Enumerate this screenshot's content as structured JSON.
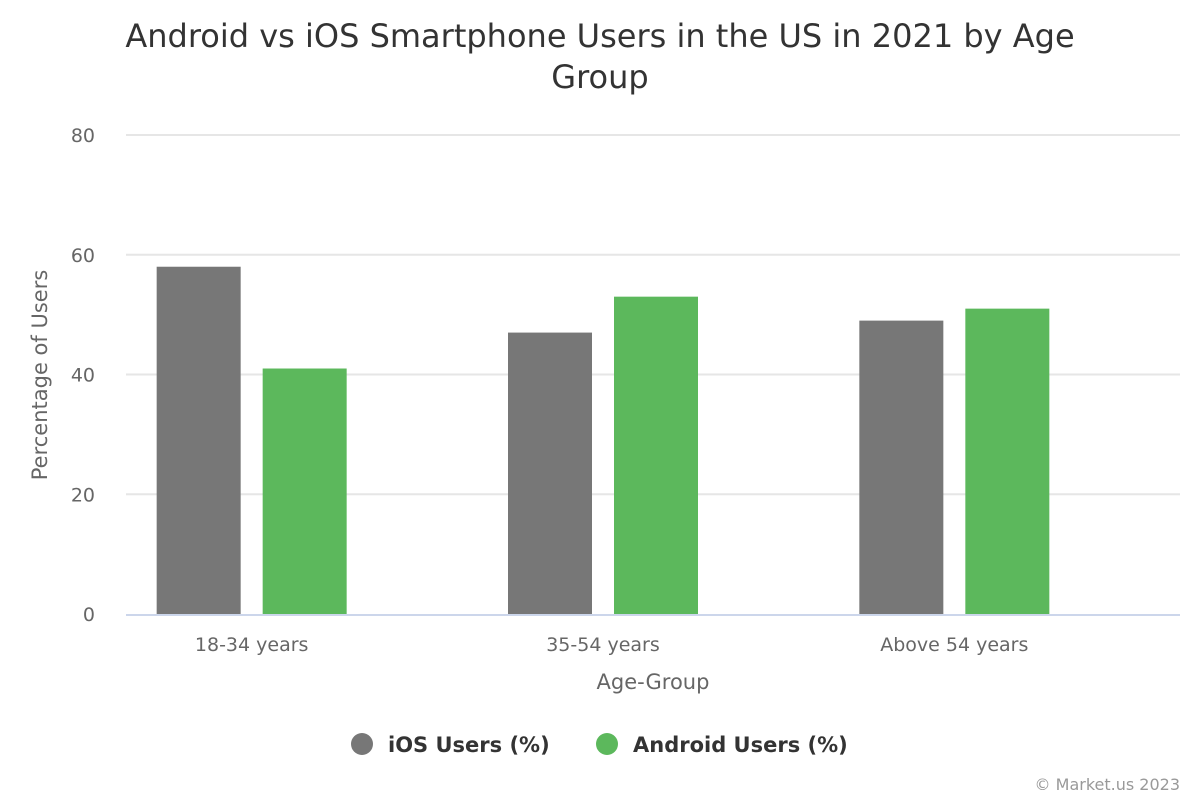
{
  "chart_data": {
    "type": "bar",
    "title": "Android vs iOS Smartphone Users in the US in 2021 by Age Group",
    "title_lines": [
      "Android vs iOS Smartphone Users in the US in 2021 by Age",
      "Group"
    ],
    "xlabel": "Age-Group",
    "ylabel": "Percentage of Users",
    "categories": [
      "18-34 years",
      "35-54 years",
      "Above 54 years"
    ],
    "series": [
      {
        "name": "iOS Users (%)",
        "color": "#777777",
        "values": [
          58,
          47,
          49
        ]
      },
      {
        "name": "Android Users (%)",
        "color": "#5cb85c",
        "values": [
          41,
          53,
          51
        ]
      }
    ],
    "ylim": [
      0,
      80
    ],
    "yticks": [
      0,
      20,
      40,
      60,
      80
    ],
    "grid": true,
    "legend_position": "bottom-center",
    "credits": "© Market.us 2023"
  }
}
